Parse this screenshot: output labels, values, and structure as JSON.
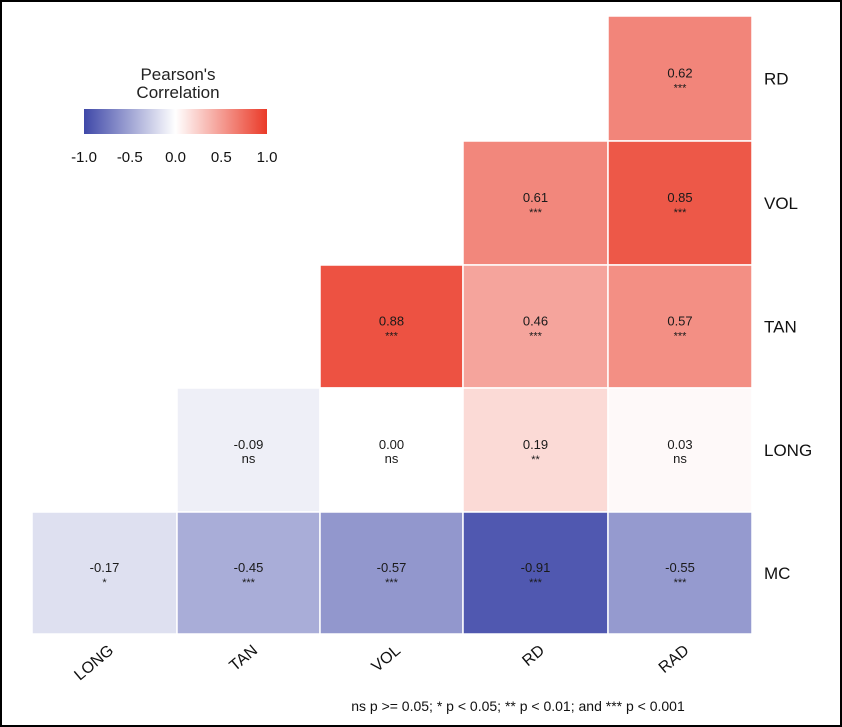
{
  "chart_data": {
    "type": "heatmap",
    "x_categories": [
      "LONG",
      "TAN",
      "VOL",
      "RD",
      "RAD"
    ],
    "y_categories": [
      "RD",
      "VOL",
      "TAN",
      "LONG",
      "MC"
    ],
    "cells": [
      {
        "x": "RAD",
        "y": "RD",
        "value": 0.62,
        "label": "0.62",
        "sig": "***"
      },
      {
        "x": "RD",
        "y": "VOL",
        "value": 0.61,
        "label": "0.61",
        "sig": "***"
      },
      {
        "x": "RAD",
        "y": "VOL",
        "value": 0.85,
        "label": "0.85",
        "sig": "***"
      },
      {
        "x": "VOL",
        "y": "TAN",
        "value": 0.88,
        "label": "0.88",
        "sig": "***"
      },
      {
        "x": "RD",
        "y": "TAN",
        "value": 0.46,
        "label": "0.46",
        "sig": "***"
      },
      {
        "x": "RAD",
        "y": "TAN",
        "value": 0.57,
        "label": "0.57",
        "sig": "***"
      },
      {
        "x": "TAN",
        "y": "LONG",
        "value": -0.09,
        "label": "-0.09",
        "sig": "ns"
      },
      {
        "x": "VOL",
        "y": "LONG",
        "value": 0.0,
        "label": "0.00",
        "sig": "ns"
      },
      {
        "x": "RD",
        "y": "LONG",
        "value": 0.19,
        "label": "0.19",
        "sig": "**"
      },
      {
        "x": "RAD",
        "y": "LONG",
        "value": 0.03,
        "label": "0.03",
        "sig": "ns"
      },
      {
        "x": "LONG",
        "y": "MC",
        "value": -0.17,
        "label": "-0.17",
        "sig": "*"
      },
      {
        "x": "TAN",
        "y": "MC",
        "value": -0.45,
        "label": "-0.45",
        "sig": "***"
      },
      {
        "x": "VOL",
        "y": "MC",
        "value": -0.57,
        "label": "-0.57",
        "sig": "***"
      },
      {
        "x": "RD",
        "y": "MC",
        "value": -0.91,
        "label": "-0.91",
        "sig": "***"
      },
      {
        "x": "RAD",
        "y": "MC",
        "value": -0.55,
        "label": "-0.55",
        "sig": "***"
      }
    ],
    "legend": {
      "title_line1": "Pearson's",
      "title_line2": "Correlation",
      "ticks": [
        "-1.0",
        "-0.5",
        "0.0",
        "0.5",
        "1.0"
      ],
      "range": [
        -1.0,
        1.0
      ],
      "position": "top-left"
    },
    "color_scale": {
      "low": "#3f48a8",
      "mid": "#ffffff",
      "high": "#ea3a28"
    },
    "footnote": "ns p >= 0.05; * p < 0.05; ** p < 0.01; and *** p < 0.001"
  }
}
